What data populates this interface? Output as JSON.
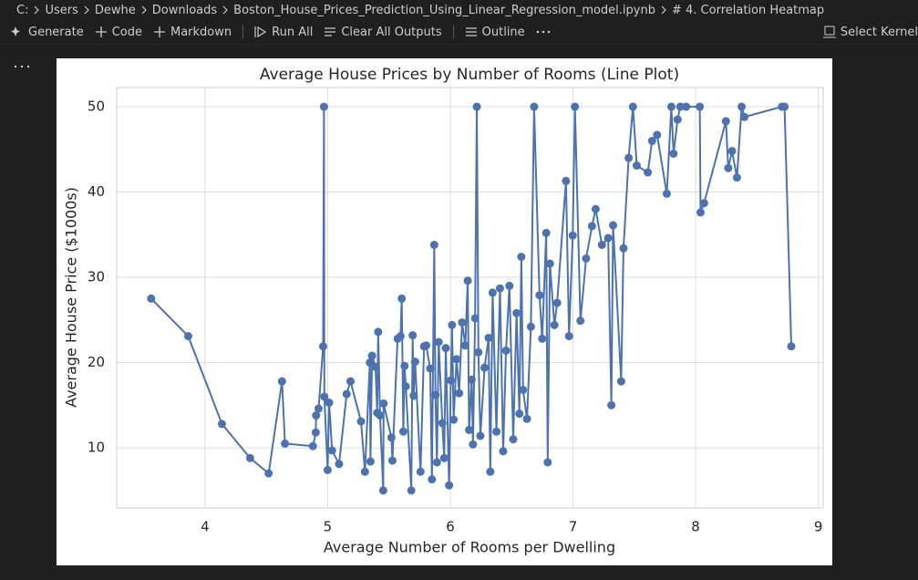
{
  "breadcrumb": [
    "C:",
    "Users",
    "Dewhe",
    "Downloads",
    "Boston_House_Prices_Prediction_Using_Linear_Regression_model.ipynb",
    "# 4. Correlation Heatmap"
  ],
  "toolbar": {
    "generate": "Generate",
    "code": "Code",
    "markdown": "Markdown",
    "run_all": "Run All",
    "clear_outputs": "Clear All Outputs",
    "outline": "Outline",
    "kernel": "Select Kernel"
  },
  "chart_data": {
    "type": "line",
    "title": "Average House Prices by Number of Rooms (Line Plot)",
    "x_label": "Average Number of Rooms per Dwelling",
    "y_label": "Average House Price ($1000s)",
    "color": "#4c72b0",
    "grid": true,
    "marker": true,
    "xlim": [
      3.28,
      9.04
    ],
    "ylim": [
      2.95,
      52.25
    ],
    "xticks": [
      4,
      5,
      6,
      7,
      8,
      9
    ],
    "yticks": [
      10,
      20,
      30,
      40,
      50
    ],
    "x": [
      3.561,
      3.863,
      4.138,
      4.368,
      4.519,
      4.628,
      4.652,
      4.88,
      4.903,
      4.906,
      4.926,
      4.963,
      4.97,
      4.973,
      5.0,
      5.012,
      5.036,
      5.093,
      5.155,
      5.186,
      5.272,
      5.304,
      5.344,
      5.349,
      5.362,
      5.39,
      5.404,
      5.412,
      5.427,
      5.453,
      5.456,
      5.52,
      5.528,
      5.57,
      5.594,
      5.604,
      5.617,
      5.627,
      5.637,
      5.682,
      5.693,
      5.701,
      5.713,
      5.757,
      5.786,
      5.803,
      5.836,
      5.85,
      5.869,
      5.879,
      5.891,
      5.905,
      5.935,
      5.95,
      5.963,
      5.99,
      6.004,
      6.014,
      6.027,
      6.051,
      6.072,
      6.096,
      6.122,
      6.142,
      6.153,
      6.174,
      6.185,
      6.202,
      6.216,
      6.229,
      6.245,
      6.279,
      6.312,
      6.326,
      6.345,
      6.376,
      6.405,
      6.431,
      6.454,
      6.482,
      6.513,
      6.54,
      6.563,
      6.579,
      6.593,
      6.625,
      6.657,
      6.683,
      6.727,
      6.749,
      6.782,
      6.794,
      6.812,
      6.849,
      6.871,
      6.943,
      6.968,
      6.998,
      7.016,
      7.061,
      7.107,
      7.155,
      7.185,
      7.236,
      7.287,
      7.313,
      7.327,
      7.393,
      7.412,
      7.454,
      7.489,
      7.52,
      7.61,
      7.645,
      7.686,
      7.765,
      7.802,
      7.82,
      7.853,
      7.875,
      7.923,
      8.034,
      8.04,
      8.069,
      8.247,
      8.266,
      8.297,
      8.337,
      8.375,
      8.398,
      8.704,
      8.725,
      8.78
    ],
    "values": [
      27.5,
      23.1,
      12.8,
      8.8,
      7.0,
      17.8,
      10.5,
      10.2,
      11.8,
      13.8,
      14.6,
      21.9,
      50,
      16.0,
      7.4,
      15.3,
      9.7,
      8.1,
      16.3,
      17.8,
      13.1,
      7.2,
      20.0,
      8.4,
      20.8,
      19.5,
      14.1,
      23.6,
      13.8,
      5.0,
      15.2,
      11.2,
      8.5,
      22.8,
      23.1,
      27.5,
      11.9,
      19.6,
      17.2,
      5.0,
      23.2,
      16.1,
      20.1,
      7.2,
      21.9,
      22.0,
      19.3,
      6.3,
      33.8,
      16.2,
      8.3,
      22.4,
      12.9,
      8.8,
      21.7,
      5.6,
      17.9,
      24.4,
      13.3,
      20.4,
      16.4,
      24.7,
      22.0,
      29.6,
      12.1,
      18.0,
      10.4,
      25.2,
      50,
      21.2,
      11.4,
      19.4,
      22.9,
      7.2,
      28.2,
      11.9,
      28.7,
      9.6,
      21.4,
      29.0,
      11.0,
      25.8,
      14.0,
      32.4,
      16.8,
      13.4,
      24.2,
      50,
      27.9,
      22.8,
      35.2,
      8.3,
      31.6,
      24.4,
      27.0,
      41.3,
      23.1,
      34.9,
      50,
      24.9,
      32.2,
      36.0,
      38.0,
      33.8,
      34.6,
      15.0,
      36.1,
      17.8,
      33.4,
      44.0,
      50,
      43.1,
      42.3,
      46.0,
      46.7,
      39.8,
      50,
      44.5,
      48.5,
      50,
      50,
      50,
      37.6,
      38.7,
      48.3,
      42.8,
      44.8,
      41.7,
      50,
      48.8,
      50,
      50,
      21.9
    ]
  }
}
